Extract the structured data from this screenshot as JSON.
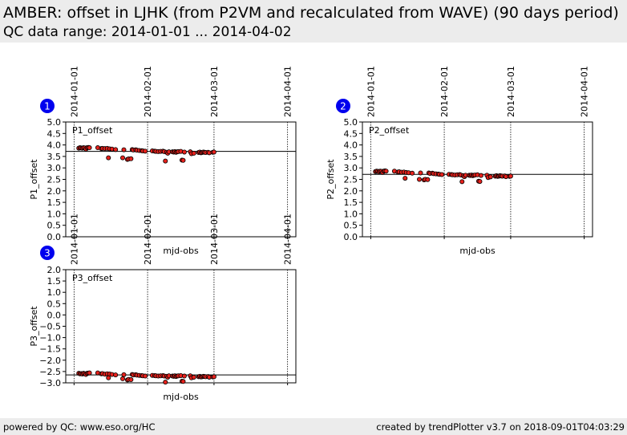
{
  "header": {
    "title": "AMBER: offset in LJHK (from P2VM and recalculated from WAVE) (90 days period)",
    "subtitle": "QC data range: 2014-01-01 ... 2014-04-02"
  },
  "footer": {
    "left": "powered by QC: www.eso.org/HC",
    "right": "created by trendPlotter v3.7 on 2018-09-01T04:03:29"
  },
  "colors": {
    "marker": "#e8211c",
    "marker_edge": "#000000",
    "badge": "#0000ee",
    "background": "#ececec"
  },
  "chart_data": [
    {
      "type": "scatter",
      "badge": "1",
      "title": "P1_offset",
      "ylabel": "P1_offset",
      "xlabel": "mjd-obs",
      "xlim": [
        56654.5,
        56751.5
      ],
      "ylim": [
        0.0,
        5.0
      ],
      "yticks": [
        0.0,
        0.5,
        1.0,
        1.5,
        2.0,
        2.5,
        3.0,
        3.5,
        4.0,
        4.5,
        5.0
      ],
      "date_markers": [
        {
          "label": "2014-01-01",
          "mjd": 56658
        },
        {
          "label": "2014-02-01",
          "mjd": 56689
        },
        {
          "label": "2014-03-01",
          "mjd": 56717
        },
        {
          "label": "2014-04-01",
          "mjd": 56748
        }
      ],
      "reference_line": 3.72,
      "points": [
        {
          "x": 56660.0,
          "y": 3.86
        },
        {
          "x": 56660.5,
          "y": 3.88
        },
        {
          "x": 56661.0,
          "y": 3.87
        },
        {
          "x": 56661.5,
          "y": 3.86
        },
        {
          "x": 56662.0,
          "y": 3.88
        },
        {
          "x": 56662.5,
          "y": 3.87
        },
        {
          "x": 56663.0,
          "y": 3.82
        },
        {
          "x": 56663.5,
          "y": 3.88
        },
        {
          "x": 56664.0,
          "y": 3.89
        },
        {
          "x": 56664.5,
          "y": 3.88
        },
        {
          "x": 56668.0,
          "y": 3.88
        },
        {
          "x": 56669.5,
          "y": 3.84
        },
        {
          "x": 56670.0,
          "y": 3.85
        },
        {
          "x": 56671.0,
          "y": 3.84
        },
        {
          "x": 56672.0,
          "y": 3.85
        },
        {
          "x": 56672.5,
          "y": 3.44
        },
        {
          "x": 56673.0,
          "y": 3.83
        },
        {
          "x": 56674.0,
          "y": 3.82
        },
        {
          "x": 56675.5,
          "y": 3.8
        },
        {
          "x": 56678.5,
          "y": 3.44
        },
        {
          "x": 56679.0,
          "y": 3.79
        },
        {
          "x": 56680.5,
          "y": 3.37
        },
        {
          "x": 56681.0,
          "y": 3.39
        },
        {
          "x": 56682.0,
          "y": 3.4
        },
        {
          "x": 56682.5,
          "y": 3.8
        },
        {
          "x": 56683.0,
          "y": 3.78
        },
        {
          "x": 56684.0,
          "y": 3.79
        },
        {
          "x": 56684.5,
          "y": 3.77
        },
        {
          "x": 56685.5,
          "y": 3.76
        },
        {
          "x": 56686.5,
          "y": 3.75
        },
        {
          "x": 56687.0,
          "y": 3.74
        },
        {
          "x": 56688.0,
          "y": 3.73
        },
        {
          "x": 56691.0,
          "y": 3.74
        },
        {
          "x": 56692.0,
          "y": 3.73
        },
        {
          "x": 56692.5,
          "y": 3.72
        },
        {
          "x": 56693.5,
          "y": 3.71
        },
        {
          "x": 56694.5,
          "y": 3.72
        },
        {
          "x": 56695.5,
          "y": 3.73
        },
        {
          "x": 56696.0,
          "y": 3.71
        },
        {
          "x": 56696.5,
          "y": 3.3
        },
        {
          "x": 56697.0,
          "y": 3.68
        },
        {
          "x": 56697.5,
          "y": 3.64
        },
        {
          "x": 56698.0,
          "y": 3.7
        },
        {
          "x": 56699.5,
          "y": 3.7
        },
        {
          "x": 56700.0,
          "y": 3.69
        },
        {
          "x": 56700.5,
          "y": 3.71
        },
        {
          "x": 56701.0,
          "y": 3.68
        },
        {
          "x": 56701.5,
          "y": 3.7
        },
        {
          "x": 56702.0,
          "y": 3.71
        },
        {
          "x": 56703.0,
          "y": 3.72
        },
        {
          "x": 56703.5,
          "y": 3.34
        },
        {
          "x": 56704.0,
          "y": 3.33
        },
        {
          "x": 56704.5,
          "y": 3.69
        },
        {
          "x": 56707.0,
          "y": 3.7
        },
        {
          "x": 56707.5,
          "y": 3.62
        },
        {
          "x": 56708.5,
          "y": 3.64
        },
        {
          "x": 56710.5,
          "y": 3.67
        },
        {
          "x": 56711.0,
          "y": 3.69
        },
        {
          "x": 56711.5,
          "y": 3.66
        },
        {
          "x": 56712.0,
          "y": 3.67
        },
        {
          "x": 56712.5,
          "y": 3.69
        },
        {
          "x": 56713.0,
          "y": 3.68
        },
        {
          "x": 56713.5,
          "y": 3.67
        },
        {
          "x": 56714.5,
          "y": 3.68
        },
        {
          "x": 56715.0,
          "y": 3.66
        },
        {
          "x": 56716.5,
          "y": 3.68
        },
        {
          "x": 56717.0,
          "y": 3.69
        }
      ]
    },
    {
      "type": "scatter",
      "badge": "2",
      "title": "P2_offset",
      "ylabel": "P2_offset",
      "xlabel": "mjd-obs",
      "xlim": [
        56654.5,
        56751.5
      ],
      "ylim": [
        0.0,
        5.0
      ],
      "yticks": [
        0.0,
        0.5,
        1.0,
        1.5,
        2.0,
        2.5,
        3.0,
        3.5,
        4.0,
        4.5,
        5.0
      ],
      "date_markers": [
        {
          "label": "2014-01-01",
          "mjd": 56658
        },
        {
          "label": "2014-02-01",
          "mjd": 56689
        },
        {
          "label": "2014-03-01",
          "mjd": 56717
        },
        {
          "label": "2014-04-01",
          "mjd": 56748
        }
      ],
      "reference_line": 2.72,
      "points": [
        {
          "x": 56660.0,
          "y": 2.84
        },
        {
          "x": 56660.5,
          "y": 2.86
        },
        {
          "x": 56661.0,
          "y": 2.85
        },
        {
          "x": 56661.5,
          "y": 2.83
        },
        {
          "x": 56662.0,
          "y": 2.86
        },
        {
          "x": 56662.5,
          "y": 2.85
        },
        {
          "x": 56663.0,
          "y": 2.8
        },
        {
          "x": 56663.5,
          "y": 2.86
        },
        {
          "x": 56664.0,
          "y": 2.87
        },
        {
          "x": 56664.5,
          "y": 2.86
        },
        {
          "x": 56668.0,
          "y": 2.86
        },
        {
          "x": 56669.5,
          "y": 2.82
        },
        {
          "x": 56670.0,
          "y": 2.83
        },
        {
          "x": 56671.0,
          "y": 2.81
        },
        {
          "x": 56672.0,
          "y": 2.82
        },
        {
          "x": 56672.5,
          "y": 2.55
        },
        {
          "x": 56673.0,
          "y": 2.8
        },
        {
          "x": 56674.0,
          "y": 2.79
        },
        {
          "x": 56675.5,
          "y": 2.77
        },
        {
          "x": 56678.5,
          "y": 2.5
        },
        {
          "x": 56679.0,
          "y": 2.78
        },
        {
          "x": 56680.5,
          "y": 2.48
        },
        {
          "x": 56681.0,
          "y": 2.5
        },
        {
          "x": 56682.0,
          "y": 2.49
        },
        {
          "x": 56682.5,
          "y": 2.78
        },
        {
          "x": 56683.0,
          "y": 2.76
        },
        {
          "x": 56684.0,
          "y": 2.77
        },
        {
          "x": 56684.5,
          "y": 2.75
        },
        {
          "x": 56685.5,
          "y": 2.74
        },
        {
          "x": 56686.5,
          "y": 2.73
        },
        {
          "x": 56687.0,
          "y": 2.72
        },
        {
          "x": 56688.0,
          "y": 2.71
        },
        {
          "x": 56691.0,
          "y": 2.72
        },
        {
          "x": 56692.0,
          "y": 2.71
        },
        {
          "x": 56692.5,
          "y": 2.7
        },
        {
          "x": 56693.5,
          "y": 2.69
        },
        {
          "x": 56694.5,
          "y": 2.7
        },
        {
          "x": 56695.5,
          "y": 2.71
        },
        {
          "x": 56696.0,
          "y": 2.69
        },
        {
          "x": 56696.5,
          "y": 2.4
        },
        {
          "x": 56697.0,
          "y": 2.66
        },
        {
          "x": 56697.5,
          "y": 2.62
        },
        {
          "x": 56698.0,
          "y": 2.68
        },
        {
          "x": 56699.5,
          "y": 2.68
        },
        {
          "x": 56700.0,
          "y": 2.67
        },
        {
          "x": 56700.5,
          "y": 2.69
        },
        {
          "x": 56701.0,
          "y": 2.66
        },
        {
          "x": 56701.5,
          "y": 2.68
        },
        {
          "x": 56702.0,
          "y": 2.69
        },
        {
          "x": 56703.0,
          "y": 2.7
        },
        {
          "x": 56703.5,
          "y": 2.42
        },
        {
          "x": 56704.0,
          "y": 2.41
        },
        {
          "x": 56704.5,
          "y": 2.67
        },
        {
          "x": 56707.0,
          "y": 2.68
        },
        {
          "x": 56707.5,
          "y": 2.58
        },
        {
          "x": 56708.5,
          "y": 2.61
        },
        {
          "x": 56710.5,
          "y": 2.64
        },
        {
          "x": 56711.0,
          "y": 2.66
        },
        {
          "x": 56711.5,
          "y": 2.63
        },
        {
          "x": 56712.0,
          "y": 2.64
        },
        {
          "x": 56712.5,
          "y": 2.66
        },
        {
          "x": 56713.0,
          "y": 2.65
        },
        {
          "x": 56713.5,
          "y": 2.64
        },
        {
          "x": 56714.5,
          "y": 2.65
        },
        {
          "x": 56715.0,
          "y": 2.62
        },
        {
          "x": 56716.5,
          "y": 2.63
        },
        {
          "x": 56717.0,
          "y": 2.64
        }
      ]
    },
    {
      "type": "scatter",
      "badge": "3",
      "title": "P3_offset",
      "ylabel": "P3_offset",
      "xlabel": "mjd-obs",
      "xlim": [
        56654.5,
        56751.5
      ],
      "ylim": [
        -3.0,
        2.0
      ],
      "yticks": [
        -3.0,
        -2.5,
        -2.0,
        -1.5,
        -1.0,
        -0.5,
        0.0,
        0.5,
        1.0,
        1.5,
        2.0
      ],
      "ytick_labels": [
        "−3.0",
        "−2.5",
        "−2.0",
        "−1.5",
        "−1.0",
        "−0.5",
        "0.0",
        "0.5",
        "1.0",
        "1.5",
        "2.0"
      ],
      "date_markers": [
        {
          "label": "2014-01-01",
          "mjd": 56658
        },
        {
          "label": "2014-02-01",
          "mjd": 56689
        },
        {
          "label": "2014-03-01",
          "mjd": 56717
        },
        {
          "label": "2014-04-01",
          "mjd": 56748
        }
      ],
      "reference_line": -2.65,
      "points": [
        {
          "x": 56660.0,
          "y": -2.58
        },
        {
          "x": 56660.5,
          "y": -2.6
        },
        {
          "x": 56661.0,
          "y": -2.59
        },
        {
          "x": 56661.5,
          "y": -2.61
        },
        {
          "x": 56662.0,
          "y": -2.58
        },
        {
          "x": 56662.5,
          "y": -2.6
        },
        {
          "x": 56663.0,
          "y": -2.63
        },
        {
          "x": 56663.5,
          "y": -2.58
        },
        {
          "x": 56664.0,
          "y": -2.57
        },
        {
          "x": 56664.5,
          "y": -2.56
        },
        {
          "x": 56668.0,
          "y": -2.56
        },
        {
          "x": 56669.5,
          "y": -2.6
        },
        {
          "x": 56670.0,
          "y": -2.59
        },
        {
          "x": 56671.0,
          "y": -2.62
        },
        {
          "x": 56672.0,
          "y": -2.6
        },
        {
          "x": 56672.5,
          "y": -2.78
        },
        {
          "x": 56673.0,
          "y": -2.61
        },
        {
          "x": 56674.0,
          "y": -2.63
        },
        {
          "x": 56675.5,
          "y": -2.65
        },
        {
          "x": 56678.5,
          "y": -2.82
        },
        {
          "x": 56679.0,
          "y": -2.64
        },
        {
          "x": 56680.5,
          "y": -2.87
        },
        {
          "x": 56681.0,
          "y": -2.85
        },
        {
          "x": 56682.0,
          "y": -2.86
        },
        {
          "x": 56682.5,
          "y": -2.63
        },
        {
          "x": 56683.0,
          "y": -2.65
        },
        {
          "x": 56684.0,
          "y": -2.64
        },
        {
          "x": 56684.5,
          "y": -2.66
        },
        {
          "x": 56685.5,
          "y": -2.67
        },
        {
          "x": 56686.5,
          "y": -2.68
        },
        {
          "x": 56687.0,
          "y": -2.69
        },
        {
          "x": 56688.0,
          "y": -2.7
        },
        {
          "x": 56691.0,
          "y": -2.67
        },
        {
          "x": 56692.0,
          "y": -2.68
        },
        {
          "x": 56692.5,
          "y": -2.69
        },
        {
          "x": 56693.5,
          "y": -2.7
        },
        {
          "x": 56694.5,
          "y": -2.69
        },
        {
          "x": 56695.5,
          "y": -2.68
        },
        {
          "x": 56696.0,
          "y": -2.7
        },
        {
          "x": 56696.5,
          "y": -2.97
        },
        {
          "x": 56697.0,
          "y": -2.71
        },
        {
          "x": 56697.5,
          "y": -2.75
        },
        {
          "x": 56698.0,
          "y": -2.69
        },
        {
          "x": 56699.5,
          "y": -2.7
        },
        {
          "x": 56700.0,
          "y": -2.71
        },
        {
          "x": 56700.5,
          "y": -2.69
        },
        {
          "x": 56701.0,
          "y": -2.72
        },
        {
          "x": 56701.5,
          "y": -2.7
        },
        {
          "x": 56702.0,
          "y": -2.69
        },
        {
          "x": 56703.0,
          "y": -2.68
        },
        {
          "x": 56703.5,
          "y": -2.93
        },
        {
          "x": 56704.0,
          "y": -2.94
        },
        {
          "x": 56704.5,
          "y": -2.7
        },
        {
          "x": 56707.0,
          "y": -2.69
        },
        {
          "x": 56707.5,
          "y": -2.78
        },
        {
          "x": 56708.5,
          "y": -2.75
        },
        {
          "x": 56710.5,
          "y": -2.73
        },
        {
          "x": 56711.0,
          "y": -2.71
        },
        {
          "x": 56711.5,
          "y": -2.74
        },
        {
          "x": 56712.0,
          "y": -2.73
        },
        {
          "x": 56712.5,
          "y": -2.71
        },
        {
          "x": 56713.0,
          "y": -2.72
        },
        {
          "x": 56713.5,
          "y": -2.73
        },
        {
          "x": 56714.5,
          "y": -2.72
        },
        {
          "x": 56715.0,
          "y": -2.75
        },
        {
          "x": 56716.5,
          "y": -2.74
        },
        {
          "x": 56717.0,
          "y": -2.73
        }
      ]
    }
  ]
}
